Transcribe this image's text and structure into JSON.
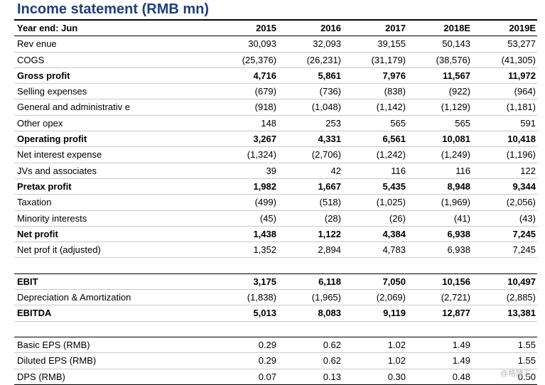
{
  "title": "Income statement (RMB mn)",
  "header": {
    "label": "Year end: Jun",
    "years": [
      "2015",
      "2016",
      "2017",
      "2018E",
      "2019E"
    ]
  },
  "rows": [
    {
      "label": "Rev enue",
      "values": [
        "30,093",
        "32,093",
        "39,155",
        "50,143",
        "53,277"
      ]
    },
    {
      "label": "COGS",
      "values": [
        "(25,376)",
        "(26,231)",
        "(31,179)",
        "(38,576)",
        "(41,305)"
      ]
    },
    {
      "label": "Gross profit",
      "values": [
        "4,716",
        "5,861",
        "7,976",
        "11,567",
        "11,972"
      ]
    },
    {
      "label": "Selling expenses",
      "values": [
        "(679)",
        "(736)",
        "(838)",
        "(922)",
        "(964)"
      ]
    },
    {
      "label": "General and administrativ e",
      "values": [
        "(918)",
        "(1,048)",
        "(1,142)",
        "(1,129)",
        "(1,181)"
      ]
    },
    {
      "label": "Other opex",
      "values": [
        "148",
        "253",
        "565",
        "565",
        "591"
      ]
    },
    {
      "label": "Operating profit",
      "values": [
        "3,267",
        "4,331",
        "6,561",
        "10,081",
        "10,418"
      ]
    },
    {
      "label": "Net interest expense",
      "values": [
        "(1,324)",
        "(2,706)",
        "(1,242)",
        "(1,249)",
        "(1,196)"
      ]
    },
    {
      "label": "JVs and associates",
      "values": [
        "39",
        "42",
        "116",
        "116",
        "122"
      ]
    },
    {
      "label": "Pretax profit",
      "values": [
        "1,982",
        "1,667",
        "5,435",
        "8,948",
        "9,344"
      ]
    },
    {
      "label": "Taxation",
      "values": [
        "(499)",
        "(518)",
        "(1,025)",
        "(1,969)",
        "(2,056)"
      ]
    },
    {
      "label": "Minority interests",
      "values": [
        "(45)",
        "(28)",
        "(26)",
        "(41)",
        "(43)"
      ]
    },
    {
      "label": "Net profit",
      "values": [
        "1,438",
        "1,122",
        "4,384",
        "6,938",
        "7,245"
      ]
    },
    {
      "label": "Net prof it (adjusted)",
      "values": [
        "1,352",
        "2,894",
        "4,783",
        "6,938",
        "7,245"
      ]
    }
  ],
  "ebit_rows": [
    {
      "label": "EBIT",
      "values": [
        "3,175",
        "6,118",
        "7,050",
        "10,156",
        "10,497"
      ]
    },
    {
      "label": "Depreciation & Amortization",
      "values": [
        "(1,838)",
        "(1,965)",
        "(2,069)",
        "(2,721)",
        "(2,885)"
      ]
    },
    {
      "label": "EBITDA",
      "values": [
        "5,013",
        "8,083",
        "9,119",
        "12,877",
        "13,381"
      ]
    }
  ],
  "eps_rows": [
    {
      "label": "Basic EPS (RMB)",
      "values": [
        "0.29",
        "0.62",
        "1.02",
        "1.49",
        "1.55"
      ]
    },
    {
      "label": "Diluted EPS (RMB)",
      "values": [
        "0.29",
        "0.62",
        "1.02",
        "1.49",
        "1.55"
      ]
    },
    {
      "label": "DPS (RMB)",
      "values": [
        "0.07",
        "0.13",
        "0.30",
        "0.48",
        "0.50"
      ]
    }
  ],
  "watermark": "@格隆汇"
}
